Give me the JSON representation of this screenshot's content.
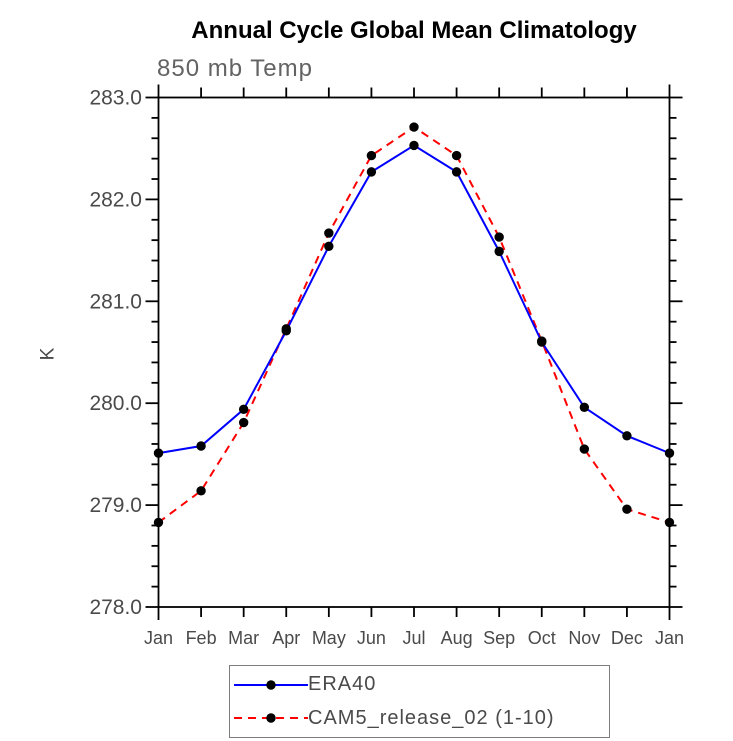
{
  "chart_data": {
    "type": "line",
    "title": "Annual Cycle Global Mean Climatology",
    "subtitle": "850 mb Temp",
    "xlabel": "",
    "ylabel": "K",
    "categories": [
      "Jan",
      "Feb",
      "Mar",
      "Apr",
      "May",
      "Jun",
      "Jul",
      "Aug",
      "Sep",
      "Oct",
      "Nov",
      "Dec",
      "Jan"
    ],
    "ylim": [
      278.0,
      283.0
    ],
    "y_major_step": 1.0,
    "y_minor_step": 0.2,
    "y_tick_labels": [
      "278.0",
      "279.0",
      "280.0",
      "281.0",
      "282.0",
      "283.0"
    ],
    "grid": false,
    "legend_position": "bottom",
    "axis_color": "#000000",
    "tick_label_color": "#4a4a4a",
    "series": [
      {
        "name": "ERA40",
        "color": "#0000ff",
        "line_style": "solid",
        "marker": "circle",
        "marker_color": "#000000",
        "values": [
          279.51,
          279.58,
          279.94,
          280.71,
          281.54,
          282.27,
          282.53,
          282.27,
          281.49,
          280.6,
          279.96,
          279.68,
          279.51
        ]
      },
      {
        "name": "CAM5_release_02 (1-10)",
        "color": "#ff0000",
        "line_style": "dashed",
        "marker": "circle",
        "marker_color": "#000000",
        "values": [
          278.83,
          279.14,
          279.81,
          280.73,
          281.67,
          282.43,
          282.71,
          282.43,
          281.63,
          280.61,
          279.55,
          278.96,
          278.83
        ]
      }
    ]
  }
}
